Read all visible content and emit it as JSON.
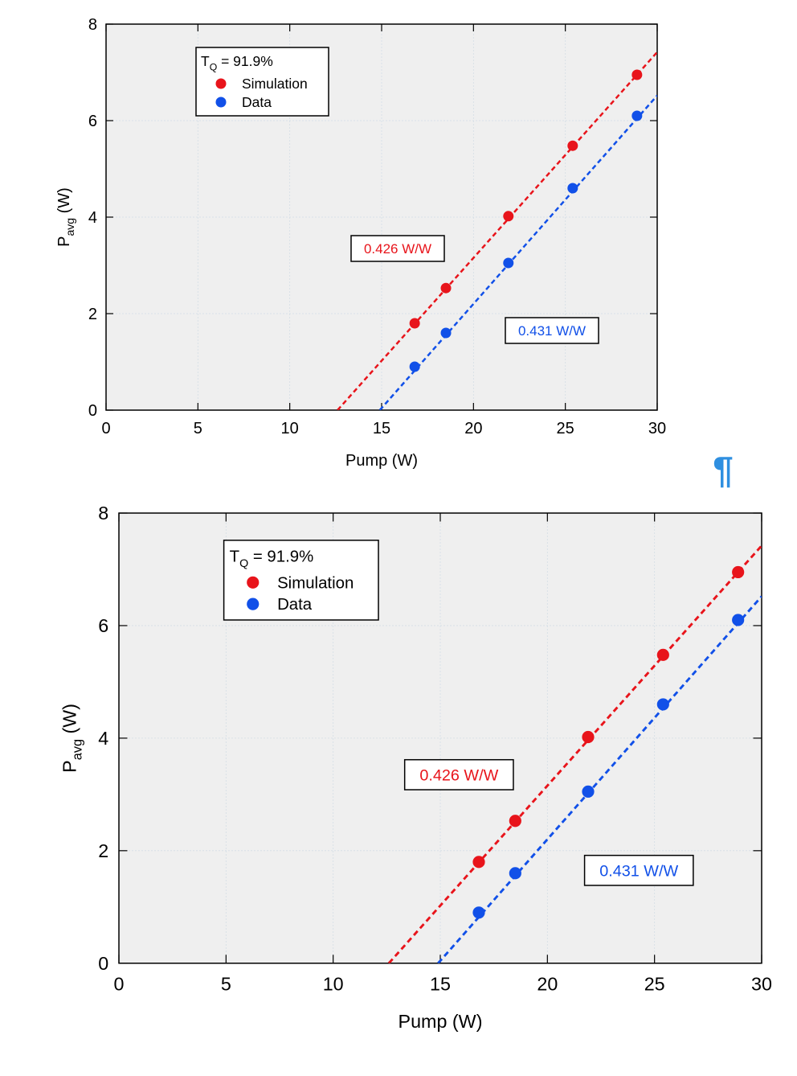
{
  "chart_data": [
    {
      "type": "scatter",
      "x_label": "Pump (W)",
      "y_label": {
        "main": "P",
        "sub": "avg",
        "rest": " (W)"
      },
      "legend_title": {
        "main": "T",
        "sub": "Q",
        "rest": " = 91.9%"
      },
      "xlim": [
        0,
        30
      ],
      "ylim": [
        0,
        8
      ],
      "xticks": [
        0,
        5,
        10,
        15,
        20,
        25,
        30
      ],
      "yticks": [
        0,
        2,
        4,
        6,
        8
      ],
      "grid": true,
      "series": [
        {
          "name": "Simulation",
          "color": "#e8141b",
          "x": [
            16.8,
            18.5,
            21.9,
            25.4,
            28.9
          ],
          "values": [
            1.8,
            2.53,
            4.02,
            5.48,
            6.95
          ],
          "fit_x": [
            12.6,
            30
          ],
          "fit_values": [
            0,
            7.42
          ]
        },
        {
          "name": "Data",
          "color": "#1150e8",
          "x": [
            16.8,
            18.5,
            21.9,
            25.4,
            28.9
          ],
          "values": [
            0.9,
            1.6,
            3.05,
            4.6,
            6.1
          ],
          "fit_x": [
            14.9,
            30
          ],
          "fit_values": [
            0,
            6.52
          ]
        }
      ],
      "annotations": [
        {
          "text": "0.426 W/W",
          "color": "#e8141b"
        },
        {
          "text": "0.431 W/W",
          "color": "#1150e8"
        }
      ]
    },
    {
      "type": "scatter",
      "x_label": "Pump (W)",
      "y_label": {
        "main": "P",
        "sub": "avg",
        "rest": " (W)"
      },
      "legend_title": {
        "main": "T",
        "sub": "Q",
        "rest": " = 91.9%"
      },
      "xlim": [
        0,
        30
      ],
      "ylim": [
        0,
        8
      ],
      "xticks": [
        0,
        5,
        10,
        15,
        20,
        25,
        30
      ],
      "yticks": [
        0,
        2,
        4,
        6,
        8
      ],
      "grid": true,
      "series": [
        {
          "name": "Simulation",
          "color": "#e8141b",
          "x": [
            16.8,
            18.5,
            21.9,
            25.4,
            28.9
          ],
          "values": [
            1.8,
            2.53,
            4.02,
            5.48,
            6.95
          ],
          "fit_x": [
            12.6,
            30
          ],
          "fit_values": [
            0,
            7.42
          ]
        },
        {
          "name": "Data",
          "color": "#1150e8",
          "x": [
            16.8,
            18.5,
            21.9,
            25.4,
            28.9
          ],
          "values": [
            0.9,
            1.6,
            3.05,
            4.6,
            6.1
          ],
          "fit_x": [
            14.9,
            30
          ],
          "fit_values": [
            0,
            6.52
          ]
        }
      ],
      "annotations": [
        {
          "text": "0.426 W/W",
          "color": "#e8141b"
        },
        {
          "text": "0.431 W/W",
          "color": "#1150e8"
        }
      ]
    }
  ],
  "pilcrow": "¶"
}
